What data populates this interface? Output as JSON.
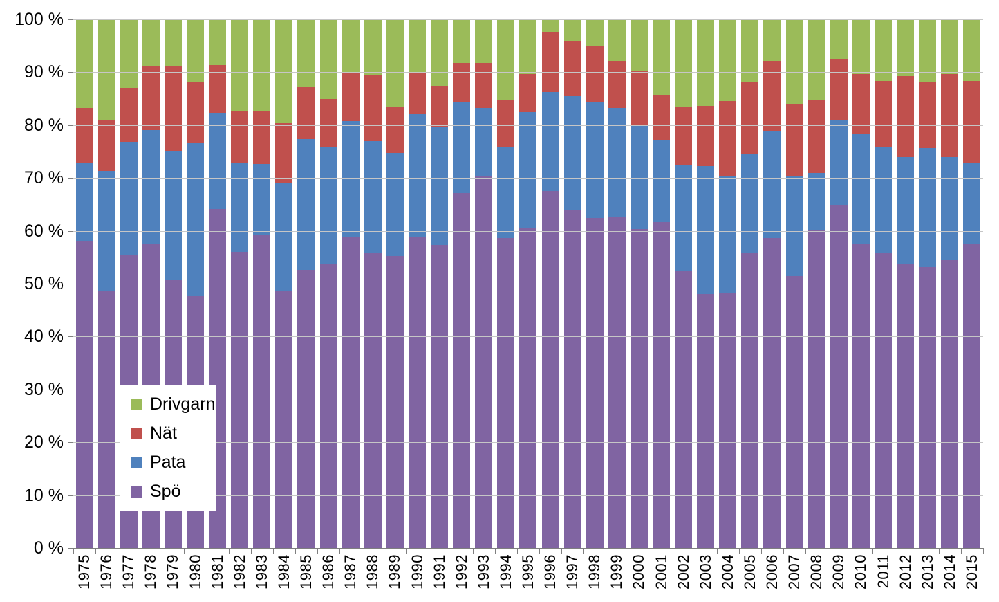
{
  "chart_data": {
    "type": "bar",
    "stacked": true,
    "percent_stacked": true,
    "categories": [
      "1975",
      "1976",
      "1977",
      "1978",
      "1979",
      "1980",
      "1981",
      "1982",
      "1983",
      "1984",
      "1985",
      "1986",
      "1987",
      "1988",
      "1989",
      "1990",
      "1991",
      "1992",
      "1993",
      "1994",
      "1995",
      "1996",
      "1997",
      "1998",
      "1999",
      "2000",
      "2001",
      "2002",
      "2003",
      "2004",
      "2005",
      "2006",
      "2007",
      "2008",
      "2009",
      "2010",
      "2011",
      "2012",
      "2013",
      "2014",
      "2015"
    ],
    "series": [
      {
        "name": "Spö",
        "color": "#8064A2",
        "values": [
          58.0,
          48.6,
          55.5,
          57.6,
          50.6,
          47.6,
          64.1,
          56.0,
          59.1,
          48.6,
          52.6,
          53.7,
          58.9,
          55.8,
          55.2,
          58.9,
          57.3,
          67.2,
          70.3,
          58.7,
          60.5,
          67.5,
          64.0,
          62.4,
          62.6,
          60.4,
          61.6,
          52.5,
          48.0,
          48.2,
          55.9,
          58.6,
          51.5,
          60.1,
          64.9,
          57.6,
          55.8,
          53.8,
          53.2,
          54.4,
          57.6
        ]
      },
      {
        "name": "Pata",
        "color": "#4F81BD",
        "values": [
          14.8,
          22.8,
          21.3,
          21.4,
          24.5,
          29.0,
          18.1,
          16.8,
          13.5,
          20.4,
          24.8,
          22.1,
          21.8,
          21.2,
          19.5,
          23.2,
          22.3,
          17.2,
          12.9,
          17.2,
          21.9,
          18.8,
          21.5,
          22.0,
          20.7,
          19.4,
          15.6,
          20.0,
          24.2,
          22.2,
          18.6,
          20.2,
          18.8,
          10.8,
          16.1,
          20.7,
          20.0,
          20.1,
          22.5,
          19.5,
          15.3
        ]
      },
      {
        "name": "Nät",
        "color": "#C0504D",
        "values": [
          10.5,
          9.6,
          10.2,
          12.1,
          16.0,
          11.5,
          9.2,
          9.8,
          10.1,
          11.4,
          9.8,
          9.2,
          9.4,
          12.6,
          8.8,
          7.7,
          7.8,
          7.4,
          8.6,
          8.9,
          7.2,
          11.3,
          10.5,
          10.5,
          8.8,
          10.5,
          8.6,
          10.9,
          11.4,
          14.2,
          13.7,
          13.3,
          13.6,
          13.9,
          11.6,
          11.3,
          12.5,
          15.4,
          12.5,
          15.7,
          15.4
        ]
      },
      {
        "name": "Drivgarn",
        "color": "#9BBB59",
        "values": [
          16.7,
          19.0,
          13.0,
          8.9,
          8.9,
          11.9,
          8.6,
          17.4,
          17.3,
          19.6,
          12.8,
          15.0,
          9.9,
          10.4,
          16.5,
          10.2,
          12.6,
          8.2,
          8.2,
          15.2,
          10.4,
          2.4,
          4.0,
          5.1,
          7.9,
          9.7,
          14.2,
          16.6,
          16.4,
          15.4,
          11.8,
          7.9,
          16.1,
          15.2,
          7.4,
          10.4,
          11.7,
          10.7,
          11.8,
          10.4,
          11.7
        ]
      }
    ],
    "y_axis": {
      "min": 0,
      "max": 100,
      "tick_labels_top_to_bottom": [
        "100 %",
        "90 %",
        "80 %",
        "70 %",
        "60 %",
        "50 %",
        "40 %",
        "30 %",
        "20 %",
        "10 %",
        "0 %"
      ],
      "grid": true
    },
    "legend": {
      "position": "inside-left",
      "items": [
        {
          "label": "Drivgarn",
          "color": "#9BBB59"
        },
        {
          "label": "Nät",
          "color": "#C0504D"
        },
        {
          "label": "Pata",
          "color": "#4F81BD"
        },
        {
          "label": "Spö",
          "color": "#8064A2"
        }
      ]
    },
    "colors": {
      "gridline": "#C6C6C6",
      "axis": "#7F7F7F",
      "text": "#000000",
      "background": "#FFFFFF"
    }
  }
}
